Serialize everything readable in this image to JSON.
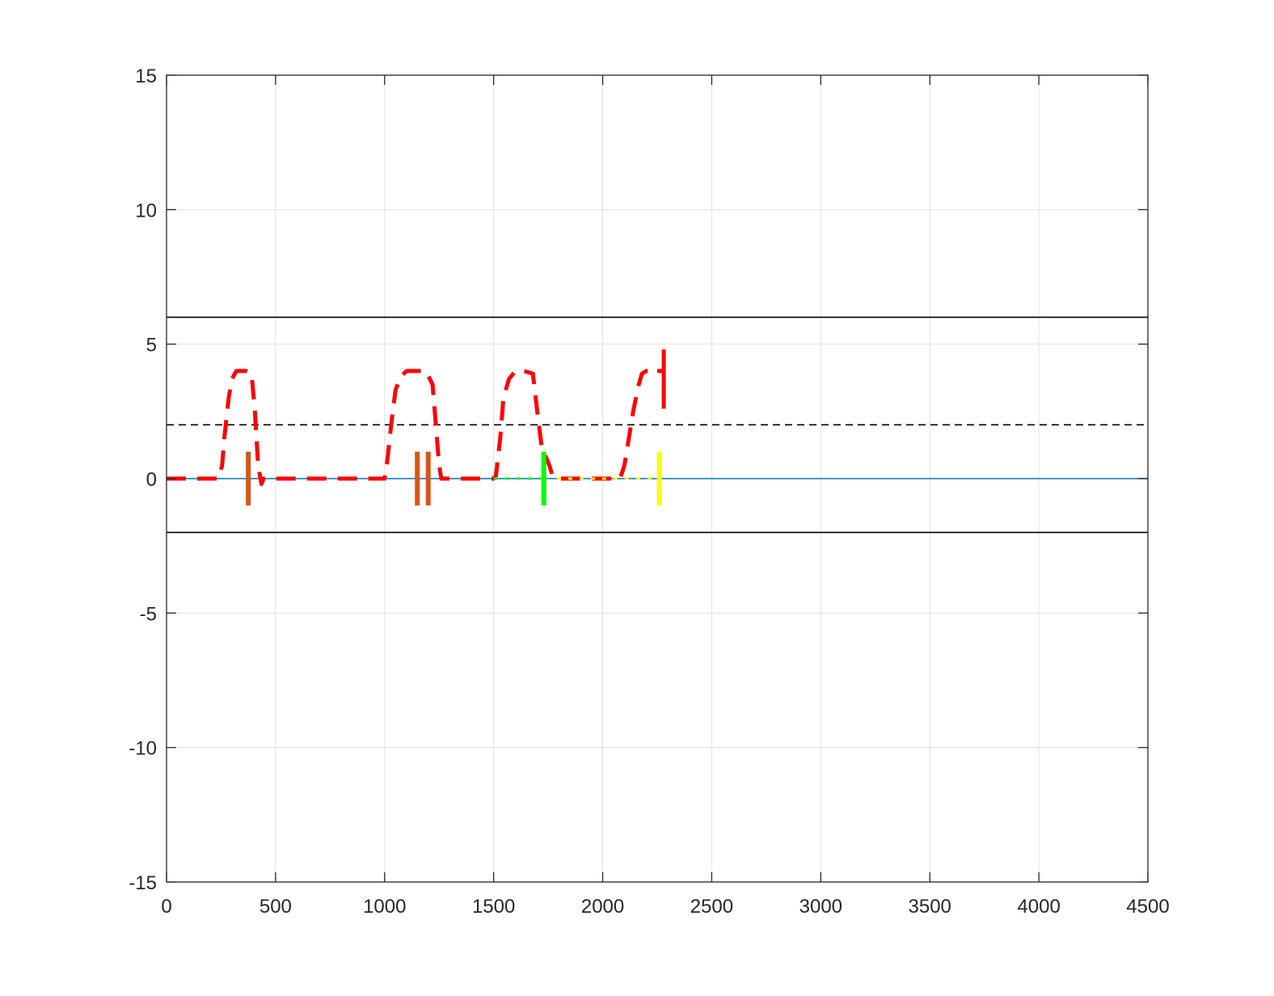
{
  "chart_data": {
    "type": "line",
    "title": "",
    "xlabel": "",
    "ylabel": "",
    "xlim": [
      0,
      4500
    ],
    "ylim": [
      -15,
      15
    ],
    "grid": true,
    "legend": "none",
    "x_ticks": [
      0,
      500,
      1000,
      1500,
      2000,
      2500,
      3000,
      3500,
      4000,
      4500
    ],
    "y_ticks": [
      -15,
      -10,
      -5,
      0,
      5,
      10,
      15
    ],
    "x_tick_labels": [
      "0",
      "500",
      "1000",
      "1500",
      "2000",
      "2500",
      "3000",
      "3500",
      "4000",
      "4500"
    ],
    "y_tick_labels": [
      "-15",
      "-10",
      "-5",
      "0",
      "5",
      "10",
      "15"
    ],
    "hlines": [
      {
        "y": 6,
        "color": "#000000",
        "style": "solid"
      },
      {
        "y": -2,
        "color": "#000000",
        "style": "solid"
      },
      {
        "y": 2,
        "color": "#000000",
        "style": "dashed"
      },
      {
        "y": 0,
        "color": "#0072BD",
        "style": "solid"
      }
    ],
    "series": [
      {
        "color": "#ff0000",
        "style": "dashed",
        "x": [
          0,
          240,
          255,
          265,
          285,
          300,
          320,
          365,
          390,
          405,
          420,
          435,
          445,
          460,
          1000,
          1010,
          1030,
          1050,
          1075,
          1100,
          1140,
          1190,
          1220,
          1235,
          1250,
          1260,
          1500,
          1510,
          1530,
          1545,
          1570,
          1600,
          1640,
          1680,
          1700,
          1720,
          1755,
          1770,
          1790,
          2080,
          2100,
          2120,
          2140,
          2165,
          2180,
          2200,
          2250
        ],
        "y": [
          0,
          0,
          0.5,
          1.5,
          3.0,
          3.7,
          4.0,
          4.0,
          3.9,
          2.5,
          0.5,
          -0.2,
          0,
          0,
          0,
          0.5,
          2.0,
          3.3,
          3.8,
          4.0,
          4.0,
          4.0,
          3.5,
          2.0,
          0.5,
          0,
          0,
          0.1,
          1.5,
          3.0,
          3.7,
          4.0,
          4.0,
          3.9,
          2.5,
          1.2,
          0.5,
          0.1,
          0,
          0,
          0.5,
          1.5,
          2.5,
          3.5,
          3.9,
          4.0,
          4.0
        ]
      },
      {
        "color": "#ff0000",
        "style": "solid",
        "x": [
          2280,
          2280
        ],
        "y": [
          2.6,
          4.8
        ]
      },
      {
        "color": "#ff0000",
        "style": "solid",
        "x": [
          2250,
          2280
        ],
        "y": [
          4.0,
          4.0
        ]
      },
      {
        "color": "#00ff00",
        "style": "dotted",
        "x": [
          1500,
          1730
        ],
        "y": [
          0,
          0
        ]
      },
      {
        "color": "#ffff00",
        "style": "dotted",
        "x": [
          1790,
          2260
        ],
        "y": [
          0,
          0
        ]
      }
    ],
    "vmarkers": [
      {
        "x": 375,
        "y": [
          -1,
          1
        ],
        "color": "#D95319"
      },
      {
        "x": 1150,
        "y": [
          -1,
          1
        ],
        "color": "#D95319"
      },
      {
        "x": 1200,
        "y": [
          -1,
          1
        ],
        "color": "#D95319"
      },
      {
        "x": 1730,
        "y": [
          -1,
          1
        ],
        "color": "#00ff00"
      },
      {
        "x": 2260,
        "y": [
          -1,
          1
        ],
        "color": "#ffff00"
      }
    ]
  }
}
